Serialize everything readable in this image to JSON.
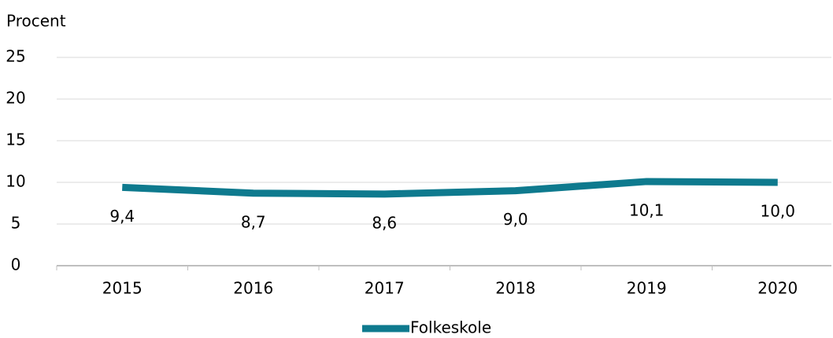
{
  "chart_data": {
    "type": "line",
    "y_label": "Procent",
    "categories": [
      "2015",
      "2016",
      "2017",
      "2018",
      "2019",
      "2020"
    ],
    "series": [
      {
        "name": "Folkeskole",
        "color": "#0e7a8e",
        "values": [
          9.4,
          8.7,
          8.6,
          9.0,
          10.1,
          10.0
        ],
        "value_labels": [
          "9,4",
          "8,7",
          "8,6",
          "9,0",
          "10,1",
          "10,0"
        ]
      }
    ],
    "ylim": [
      0,
      25
    ],
    "yticks": [
      0,
      5,
      10,
      15,
      20,
      25
    ],
    "grid": true,
    "legend": "bottom"
  }
}
